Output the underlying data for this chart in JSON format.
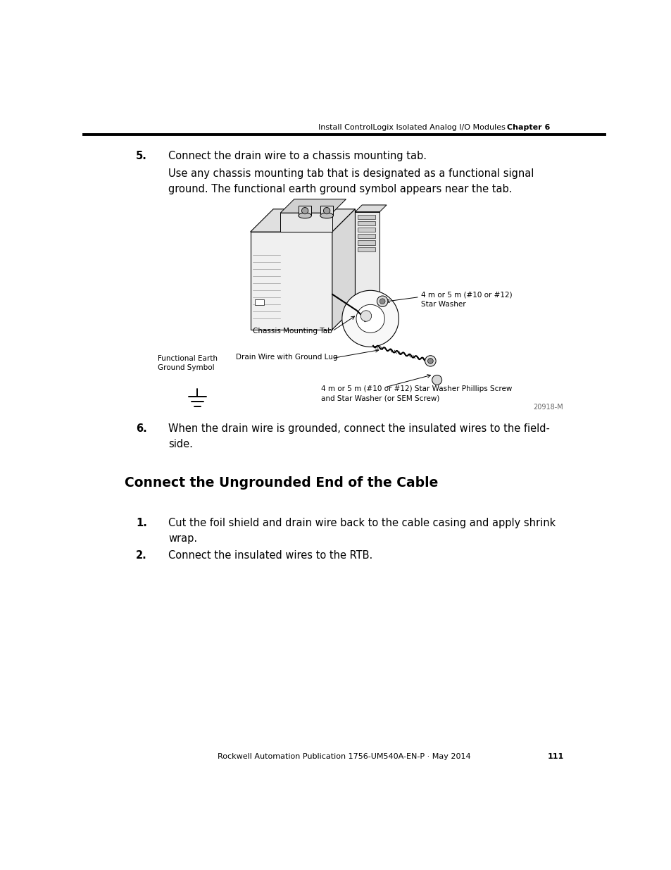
{
  "page_width": 9.54,
  "page_height": 12.35,
  "background_color": "#ffffff",
  "header_text": "Install ControlLogix Isolated Analog I/O Modules",
  "header_chapter": "Chapter 6",
  "footer_text": "Rockwell Automation Publication 1756-UM540A-EN-P · May 2014",
  "footer_page": "111",
  "step5_label": "5.",
  "step5_text": "Connect the drain wire to a chassis mounting tab.",
  "step5_sub_text": "Use any chassis mounting tab that is designated as a functional signal\nground. The functional earth ground symbol appears near the tab.",
  "step6_label": "6.",
  "step6_text": "When the drain wire is grounded, connect the insulated wires to the field-\nside.",
  "section_title": "Connect the Ungrounded End of the Cable",
  "step1_label": "1.",
  "step1_text": "Cut the foil shield and drain wire back to the cable casing and apply shrink\nwrap.",
  "step2_label": "2.",
  "step2_text": "Connect the insulated wires to the RTB.",
  "img_label_chassis": "Chassis Mounting Tab",
  "img_label_star_washer": "4 m or 5 m (#10 or #12)\nStar Washer",
  "img_label_drain_wire": "Drain Wire with Ground Lug",
  "img_label_phillips": "4 m or 5 m (#10 or #12) Star Washer Phillips Screw\nand Star Washer (or SEM Screw)",
  "img_label_functional_earth": "Functional Earth\nGround Symbol",
  "img_ref": "20918-M",
  "body_font_size": 10.5,
  "header_font_size": 8,
  "label_font_size": 7.5,
  "section_title_font_size": 13.5
}
